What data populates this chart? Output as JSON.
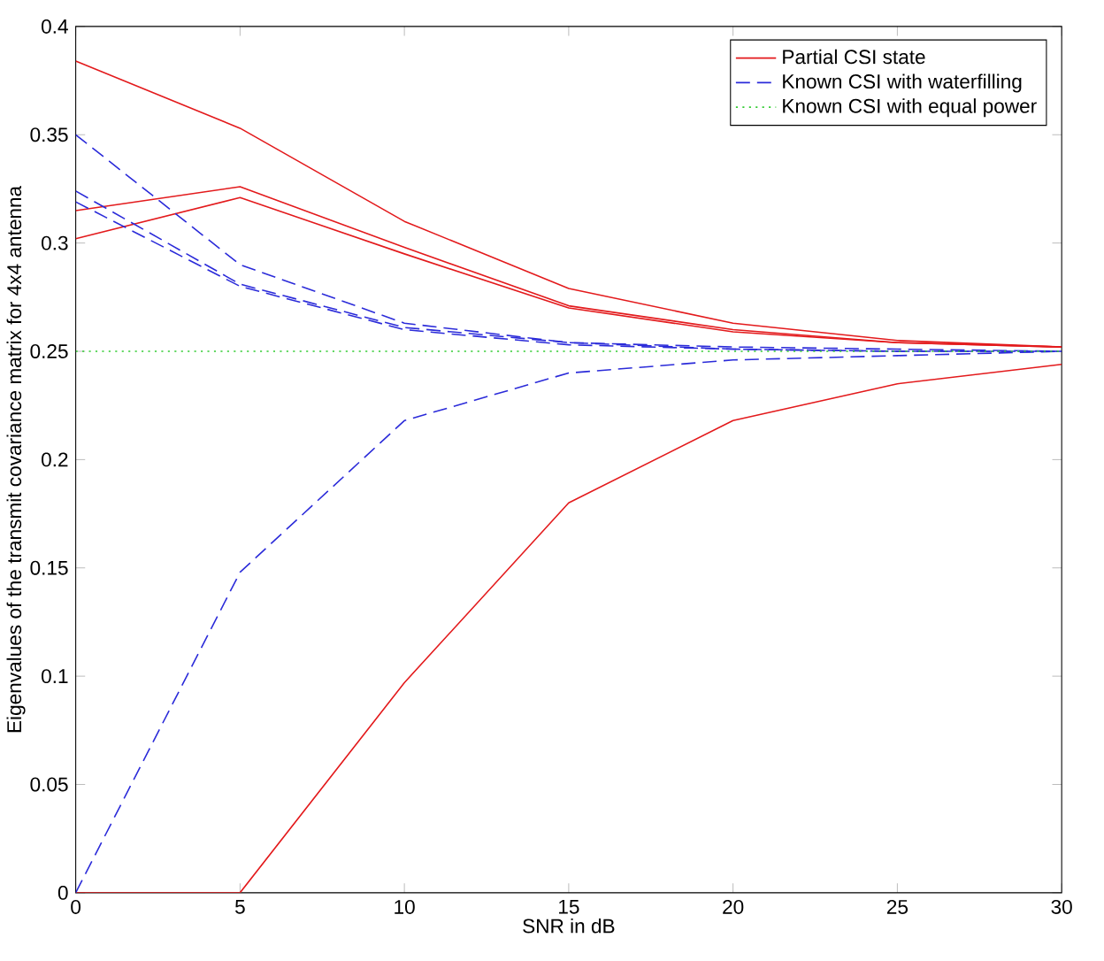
{
  "chart_data": {
    "type": "line",
    "xlabel": "SNR in dB",
    "ylabel": "Eigenvalues of the transmit covariance matrix for 4x4 antenna",
    "x": [
      0,
      5,
      10,
      15,
      20,
      25,
      30
    ],
    "series": [
      {
        "name": "Partial CSI state",
        "color": "#e31a1c",
        "line_style": "solid",
        "values": [
          0.384,
          0.353,
          0.31,
          0.279,
          0.263,
          0.255,
          0.252
        ]
      },
      {
        "color": "#e31a1c",
        "line_style": "solid",
        "values": [
          0.315,
          0.326,
          0.298,
          0.271,
          0.26,
          0.254,
          0.252
        ]
      },
      {
        "color": "#e31a1c",
        "line_style": "solid",
        "values": [
          0.302,
          0.321,
          0.295,
          0.27,
          0.259,
          0.254,
          0.252
        ]
      },
      {
        "color": "#e31a1c",
        "line_style": "solid",
        "values": [
          0,
          0,
          0.097,
          0.18,
          0.218,
          0.235,
          0.244
        ]
      },
      {
        "name": "Known CSI with waterfilling",
        "color": "#2b2bd9",
        "line_style": "dashed",
        "values": [
          0.35,
          0.29,
          0.263,
          0.254,
          0.252,
          0.251,
          0.25
        ]
      },
      {
        "color": "#2b2bd9",
        "line_style": "dashed",
        "values": [
          0.324,
          0.281,
          0.261,
          0.254,
          0.251,
          0.25,
          0.25
        ]
      },
      {
        "color": "#2b2bd9",
        "line_style": "dashed",
        "values": [
          0.319,
          0.28,
          0.26,
          0.253,
          0.251,
          0.25,
          0.25
        ]
      },
      {
        "color": "#2b2bd9",
        "line_style": "dashed",
        "values": [
          0,
          0.148,
          0.218,
          0.24,
          0.246,
          0.248,
          0.25
        ]
      },
      {
        "name": "Known CSI with equal power",
        "color": "#33cc33",
        "line_style": "dotted",
        "values": [
          0.25,
          0.25,
          0.25,
          0.25,
          0.25,
          0.25,
          0.25
        ]
      }
    ],
    "xlim": [
      0,
      30
    ],
    "ylim": [
      0,
      0.4
    ],
    "xticks": [
      0,
      5,
      10,
      15,
      20,
      25,
      30
    ],
    "yticks": [
      0,
      0.05,
      0.1,
      0.15,
      0.2,
      0.25,
      0.3,
      0.35,
      0.4
    ],
    "grid": false,
    "legend": "top right",
    "marker": "none"
  }
}
